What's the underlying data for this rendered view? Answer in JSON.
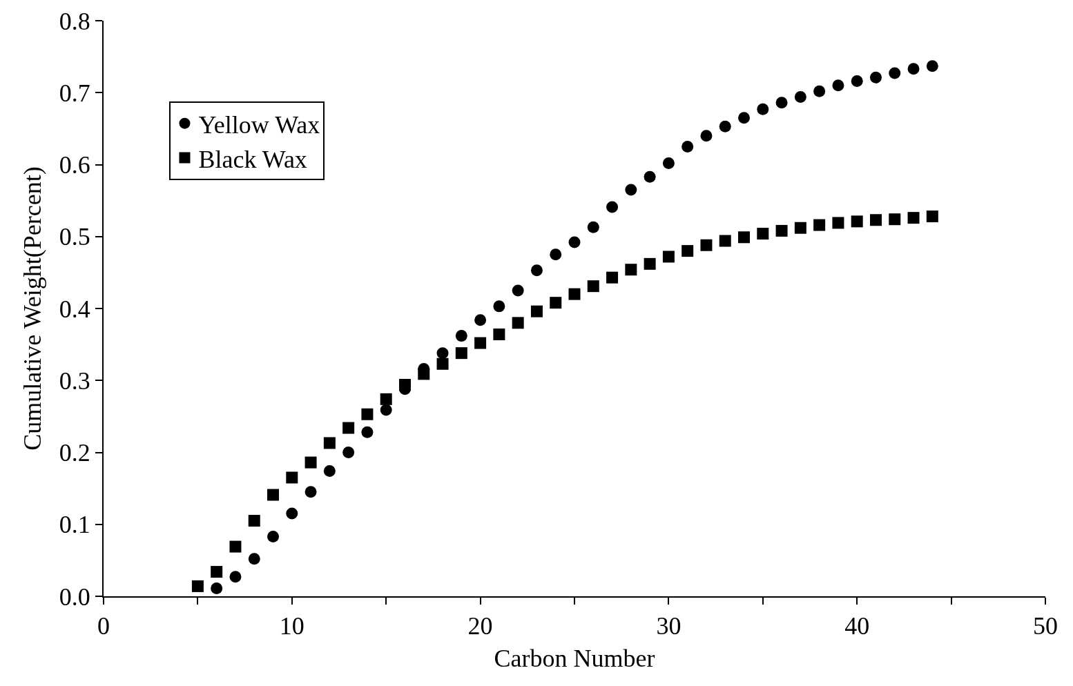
{
  "chart_data": {
    "type": "scatter",
    "xlabel": "Carbon Number",
    "ylabel": "Cumulative Weight(Percent)",
    "xlim": [
      0,
      50
    ],
    "xticks": [
      0,
      {
        "value": 5,
        "label": null
      },
      10,
      {
        "value": 15,
        "label": null
      },
      20,
      {
        "value": 25,
        "label": null
      },
      30,
      {
        "value": 35,
        "label": null
      },
      40,
      {
        "value": 45,
        "label": null
      },
      50
    ],
    "ylim": [
      0,
      0.8
    ],
    "yticks": [
      {
        "value": 0,
        "label": "0.0"
      },
      0.1,
      0.2,
      0.3,
      0.4,
      0.5,
      0.6,
      0.7,
      0.8
    ],
    "legend": "top left",
    "series": [
      {
        "name": "Yellow Wax",
        "color": "#000000",
        "marker": "circle",
        "x": [
          6,
          7,
          8,
          9,
          10,
          11,
          12,
          13,
          14,
          15,
          16,
          17,
          18,
          19,
          20,
          21,
          22,
          23,
          24,
          25,
          26,
          27,
          28,
          29,
          30,
          31,
          32,
          33,
          34,
          35,
          36,
          37,
          38,
          39,
          40,
          41,
          42,
          43,
          44
        ],
        "values": [
          0.011,
          0.027,
          0.052,
          0.083,
          0.115,
          0.145,
          0.174,
          0.2,
          0.228,
          0.259,
          0.288,
          0.316,
          0.338,
          0.362,
          0.384,
          0.403,
          0.425,
          0.453,
          0.475,
          0.492,
          0.513,
          0.541,
          0.565,
          0.583,
          0.602,
          0.625,
          0.64,
          0.653,
          0.665,
          0.677,
          0.686,
          0.694,
          0.702,
          0.71,
          0.716,
          0.721,
          0.727,
          0.733,
          0.737
        ]
      },
      {
        "name": "Black Wax",
        "color": "#000000",
        "marker": "square",
        "x": [
          5,
          6,
          7,
          8,
          9,
          10,
          11,
          12,
          13,
          14,
          15,
          16,
          17,
          18,
          19,
          20,
          21,
          22,
          23,
          24,
          25,
          26,
          27,
          28,
          29,
          30,
          31,
          32,
          33,
          34,
          35,
          36,
          37,
          38,
          39,
          40,
          41,
          42,
          43,
          44
        ],
        "values": [
          0.014,
          0.034,
          0.069,
          0.105,
          0.141,
          0.165,
          0.186,
          0.213,
          0.234,
          0.253,
          0.274,
          0.294,
          0.309,
          0.323,
          0.338,
          0.352,
          0.364,
          0.38,
          0.396,
          0.408,
          0.42,
          0.431,
          0.443,
          0.454,
          0.462,
          0.472,
          0.48,
          0.488,
          0.494,
          0.499,
          0.504,
          0.508,
          0.512,
          0.516,
          0.519,
          0.521,
          0.523,
          0.524,
          0.526,
          0.528
        ]
      }
    ]
  }
}
